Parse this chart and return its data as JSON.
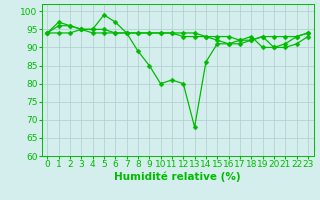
{
  "x": [
    0,
    1,
    2,
    3,
    4,
    5,
    6,
    7,
    8,
    9,
    10,
    11,
    12,
    13,
    14,
    15,
    16,
    17,
    18,
    19,
    20,
    21,
    22,
    23
  ],
  "line1": [
    94,
    97,
    96,
    95,
    95,
    99,
    97,
    94,
    89,
    85,
    80,
    81,
    80,
    68,
    86,
    91,
    91,
    92,
    93,
    90,
    90,
    91,
    93,
    94
  ],
  "line2": [
    94,
    96,
    96,
    95,
    95,
    95,
    94,
    94,
    94,
    94,
    94,
    94,
    93,
    93,
    93,
    93,
    93,
    92,
    92,
    93,
    93,
    93,
    93,
    94
  ],
  "line3": [
    94,
    94,
    94,
    95,
    94,
    94,
    94,
    94,
    94,
    94,
    94,
    94,
    94,
    94,
    93,
    92,
    91,
    91,
    92,
    93,
    90,
    90,
    91,
    93
  ],
  "xlabel": "Humidité relative (%)",
  "ylim": [
    60,
    102
  ],
  "xlim": [
    -0.5,
    23.5
  ],
  "yticks": [
    60,
    65,
    70,
    75,
    80,
    85,
    90,
    95,
    100
  ],
  "xticks": [
    0,
    1,
    2,
    3,
    4,
    5,
    6,
    7,
    8,
    9,
    10,
    11,
    12,
    13,
    14,
    15,
    16,
    17,
    18,
    19,
    20,
    21,
    22,
    23
  ],
  "line_color": "#00bb00",
  "bg_color": "#d4eeed",
  "grid_color": "#b0cccc",
  "tick_fontsize": 6.5,
  "xlabel_fontsize": 7.5,
  "lw": 0.9,
  "markersize": 2.5
}
